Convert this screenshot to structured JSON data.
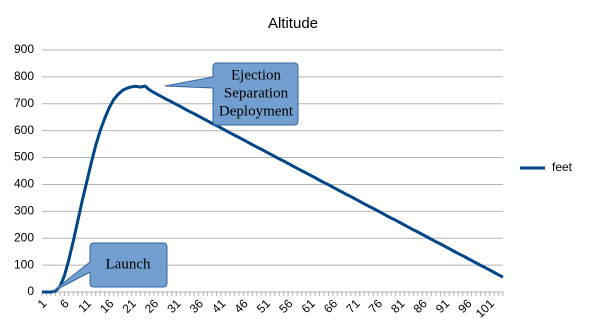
{
  "chart_data": {
    "type": "line",
    "title": "Altitude",
    "categories": [
      "1",
      null,
      null,
      null,
      null,
      "6",
      null,
      null,
      null,
      null,
      "11",
      null,
      null,
      null,
      null,
      "16",
      null,
      null,
      null,
      null,
      "21",
      null,
      null,
      null,
      null,
      "26",
      null,
      null,
      null,
      null,
      "31",
      null,
      null,
      null,
      null,
      "36",
      null,
      null,
      null,
      null,
      "41",
      null,
      null,
      null,
      null,
      "46",
      null,
      null,
      null,
      null,
      "51",
      null,
      null,
      null,
      null,
      "56",
      null,
      null,
      null,
      null,
      "61",
      null,
      null,
      null,
      null,
      "66",
      null,
      null,
      null,
      null,
      "71",
      null,
      null,
      null,
      null,
      "76",
      null,
      null,
      null,
      null,
      "81",
      null,
      null,
      null,
      null,
      "86",
      null,
      null,
      null,
      null,
      "91",
      null,
      null,
      null,
      null,
      "96",
      null,
      null,
      null,
      null,
      "101",
      null,
      null,
      null
    ],
    "series": [
      {
        "name": "feet",
        "color": "#004586",
        "values": [
          0,
          0,
          0,
          3,
          20,
          60,
          120,
          190,
          265,
          340,
          410,
          480,
          545,
          600,
          645,
          685,
          715,
          735,
          750,
          758,
          763,
          765,
          762,
          766,
          752,
          742,
          733,
          724,
          715,
          707,
          698,
          689,
          680,
          671,
          663,
          654,
          645,
          636,
          627,
          619,
          610,
          601,
          592,
          583,
          575,
          566,
          557,
          548,
          539,
          531,
          522,
          513,
          504,
          495,
          487,
          478,
          469,
          460,
          451,
          443,
          434,
          425,
          416,
          407,
          399,
          390,
          381,
          372,
          363,
          355,
          346,
          337,
          328,
          319,
          311,
          302,
          293,
          284,
          275,
          267,
          258,
          249,
          240,
          231,
          223,
          214,
          205,
          196,
          187,
          179,
          170,
          161,
          152,
          143,
          135,
          126,
          117,
          108,
          99,
          91,
          82,
          73,
          64,
          55
        ]
      }
    ],
    "ylim": [
      0,
      900
    ],
    "yticks": [
      0,
      100,
      200,
      300,
      400,
      500,
      600,
      700,
      800,
      900
    ],
    "grid": true,
    "legend": "right",
    "annotations": [
      {
        "text": "Launch"
      },
      {
        "lines": [
          "Ejection",
          "Separation",
          "Deployment"
        ]
      }
    ]
  }
}
